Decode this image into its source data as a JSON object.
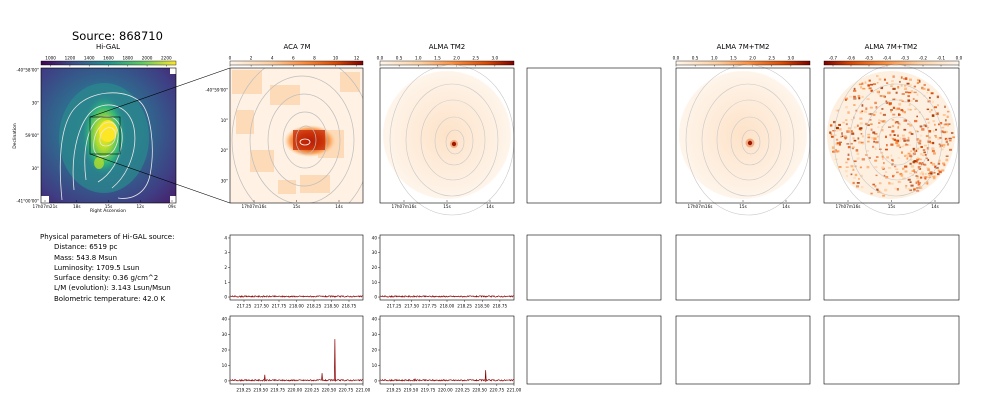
{
  "figure_title": "Source: 868710",
  "params": {
    "heading": "Physical parameters of Hi-GAL source:",
    "items": [
      "Distance: 6519 pc",
      "Mass: 543.8 Msun",
      "Luminosity: 1709.5 Lsun",
      "Surface density: 0.36 g/cm^2",
      "L/M (evolution): 3.143 Lsun/Msun",
      "Bolometric temperature: 42.0 K"
    ]
  },
  "colors": {
    "viridis_low": "#440154",
    "viridis_mid": "#21918c",
    "viridis_high": "#fde725",
    "oranges_low": "#fff5eb",
    "oranges_high": "#7f0000",
    "spectrum_line": "#8b0000",
    "contour": "#c8c8c8"
  },
  "chart_data": [
    {
      "type": "heatmap",
      "panel": "higal",
      "title": "Hi-GAL",
      "colorbar_ticks": [
        "1000",
        "1200",
        "1400",
        "1600",
        "1800",
        "2000",
        "2200"
      ],
      "colorbar_range": [
        900,
        2300
      ],
      "colormap": "viridis",
      "ytick_labels": [
        "-40°58'00\"",
        "30\"",
        "59'00\"",
        "30\"",
        "-41°00'00\""
      ],
      "xtick_labels": [
        "17h07m21s",
        "18s",
        "15s",
        "12s",
        "09s"
      ],
      "xlabel": "Right Ascension",
      "ylabel": "Declination"
    },
    {
      "type": "heatmap",
      "panel": "aca7m",
      "title": "ACA 7M",
      "colorbar_ticks": [
        "0",
        "2",
        "4",
        "6",
        "8",
        "10",
        "12"
      ],
      "colorbar_range": [
        0,
        12.6
      ],
      "colormap": "oranges",
      "ytick_labels": [
        "-40°59'00\"",
        "10\"",
        "20\"",
        "30\""
      ],
      "xtick_labels": [
        "17h07m16s",
        "15s",
        "14s"
      ]
    },
    {
      "type": "heatmap",
      "panel": "almatm2",
      "title": "ALMA TM2",
      "colorbar_ticks": [
        "0.0",
        "0.5",
        "1.0",
        "1.5",
        "2.0",
        "2.5",
        "3.0"
      ],
      "colorbar_range": [
        0,
        3.5
      ],
      "colormap": "oranges",
      "xtick_labels": [
        "17h07m16s",
        "15s",
        "14s"
      ]
    },
    {
      "type": "heatmap",
      "panel": "alma7mtm2",
      "title": "ALMA 7M+TM2",
      "colorbar_ticks": [
        "0.0",
        "0.5",
        "1.0",
        "1.5",
        "2.0",
        "2.5",
        "3.0"
      ],
      "colorbar_range": [
        0,
        3.5
      ],
      "colormap": "oranges",
      "xtick_labels": [
        "17h07m16s",
        "15s",
        "14s"
      ]
    },
    {
      "type": "heatmap",
      "panel": "alma7mtm2_neg",
      "title": "ALMA 7M+TM2",
      "colorbar_ticks": [
        "-0.7",
        "-0.6",
        "-0.5",
        "-0.4",
        "-0.3",
        "-0.2",
        "-0.1",
        "0.0"
      ],
      "colorbar_range": [
        -0.75,
        0.0
      ],
      "colormap": "oranges_r",
      "xtick_labels": [
        "17h07m16s",
        "15s",
        "14s"
      ]
    },
    {
      "type": "line",
      "panel": "spec_aca_row1",
      "xlim": [
        217.05,
        218.95
      ],
      "ylim": [
        -2,
        42
      ],
      "yticks": [
        0,
        1,
        2,
        3,
        4
      ],
      "xtick_labels": [
        "217.25",
        "217.50",
        "217.75",
        "218.00",
        "218.25",
        "218.50",
        "218.75"
      ],
      "xtick_values": [
        217.25,
        217.5,
        217.75,
        218.0,
        218.25,
        218.5,
        218.75
      ],
      "baseline": 0.4,
      "spikes": []
    },
    {
      "type": "line",
      "panel": "spec_tm2_row1",
      "xlim": [
        217.05,
        218.95
      ],
      "ylim": [
        -2,
        42
      ],
      "yticks": [
        0,
        10,
        20,
        30,
        40
      ],
      "xtick_labels": [
        "217.25",
        "217.50",
        "217.75",
        "218.00",
        "218.25",
        "218.50",
        "218.75"
      ],
      "xtick_values": [
        217.25,
        217.5,
        217.75,
        218.0,
        218.25,
        218.5,
        218.75
      ],
      "baseline": 0.4,
      "spikes": []
    },
    {
      "type": "line",
      "panel": "spec_aca_row2",
      "xlim": [
        219.05,
        221.0
      ],
      "ylim": [
        -2,
        42
      ],
      "yticks": [
        0,
        10,
        20,
        30,
        40
      ],
      "xtick_labels": [
        "219.25",
        "219.50",
        "219.75",
        "220.00",
        "220.25",
        "220.50",
        "220.75",
        "221.00"
      ],
      "xtick_values": [
        219.25,
        219.5,
        219.75,
        220.0,
        220.25,
        220.5,
        220.75,
        221.0
      ],
      "baseline": 0.4,
      "spikes": [
        [
          219.56,
          4
        ],
        [
          220.4,
          5
        ],
        [
          220.59,
          27
        ]
      ]
    },
    {
      "type": "line",
      "panel": "spec_tm2_row2",
      "xlim": [
        219.05,
        221.0
      ],
      "ylim": [
        -2,
        42
      ],
      "yticks": [
        0,
        10,
        20,
        30,
        40
      ],
      "xtick_labels": [
        "219.25",
        "219.50",
        "219.75",
        "220.00",
        "220.25",
        "220.50",
        "220.75",
        "221.00"
      ],
      "xtick_values": [
        219.25,
        219.5,
        219.75,
        220.0,
        220.25,
        220.5,
        220.75,
        221.0
      ],
      "baseline": 0.4,
      "spikes": [
        [
          219.56,
          1.5
        ],
        [
          220.59,
          7
        ]
      ]
    }
  ]
}
